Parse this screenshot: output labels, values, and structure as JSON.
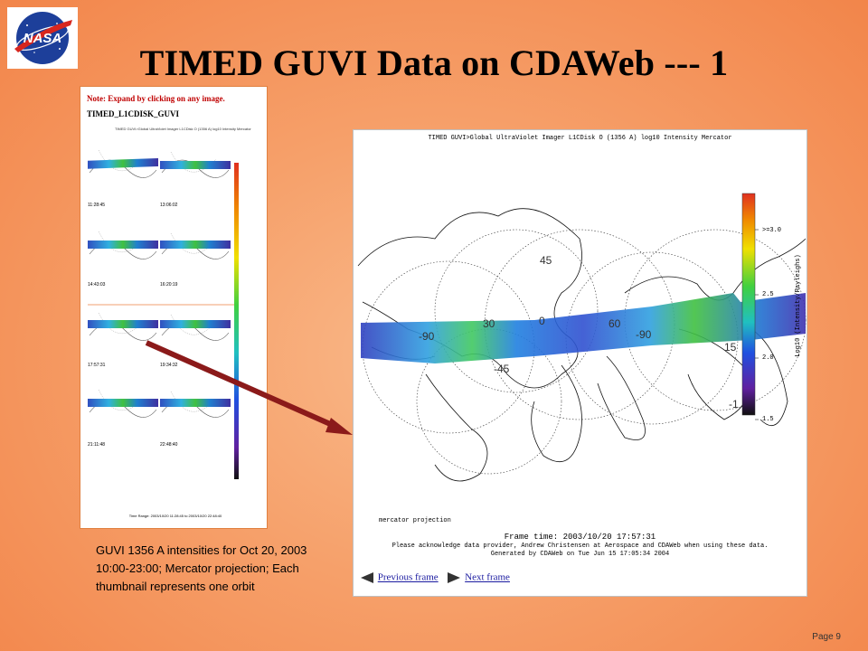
{
  "logo": {
    "icon": "nasa-meatball-icon",
    "text": "NASA"
  },
  "title": "TIMED GUVI Data on CDAWeb  --- 1",
  "thumbnails": {
    "note": "Note: Expand by clicking on any image.",
    "header": "TIMED_L1CDISK_GUVI",
    "subtitle": "TIMED   GUVI>Global UltraViolet Imager   L1CDisk O (1356 A) log10 Intensity Mercator",
    "times": [
      "11:28:45",
      "13:06:02",
      "14:43:03",
      "16:20:19",
      "17:57:31",
      "19:34:32",
      "21:11:48",
      "22:48:40"
    ],
    "footer": "Time Range: 2003/10/20 11:28:45 to 2003/10/20 22:48:40"
  },
  "main_plot": {
    "title": "TIMED   GUVI>Global UltraViolet Imager   L1CDisk O (1356 A) log10 Intensity Mercator",
    "projection": "mercator projection",
    "frame_time": "Frame time: 2003/10/20 17:57:31",
    "acknowledge": "Please acknowledge data provider, Andrew Christensen at Aerospace and CDAWeb when using these data.",
    "generated": "Generated by CDAWeb on Tue Jun 15 17:05:34 2004",
    "colorbar": {
      "label": "Log10 (Intensity/Rayleighs)",
      "ticks": [
        ">=3.0",
        "2.5",
        "2.0",
        "1.5"
      ]
    },
    "grid_labels": [
      "45",
      "30",
      "0",
      "-90",
      "60",
      "-90",
      "-45",
      "15",
      "-1"
    ],
    "nav": {
      "previous": "Previous frame",
      "next": "Next frame"
    }
  },
  "caption": "GUVI 1356 A intensities for    Oct 20, 2003 10:00-23:00;  Mercator projection; Each thumbnail represents one orbit",
  "page_number": "Page 9"
}
